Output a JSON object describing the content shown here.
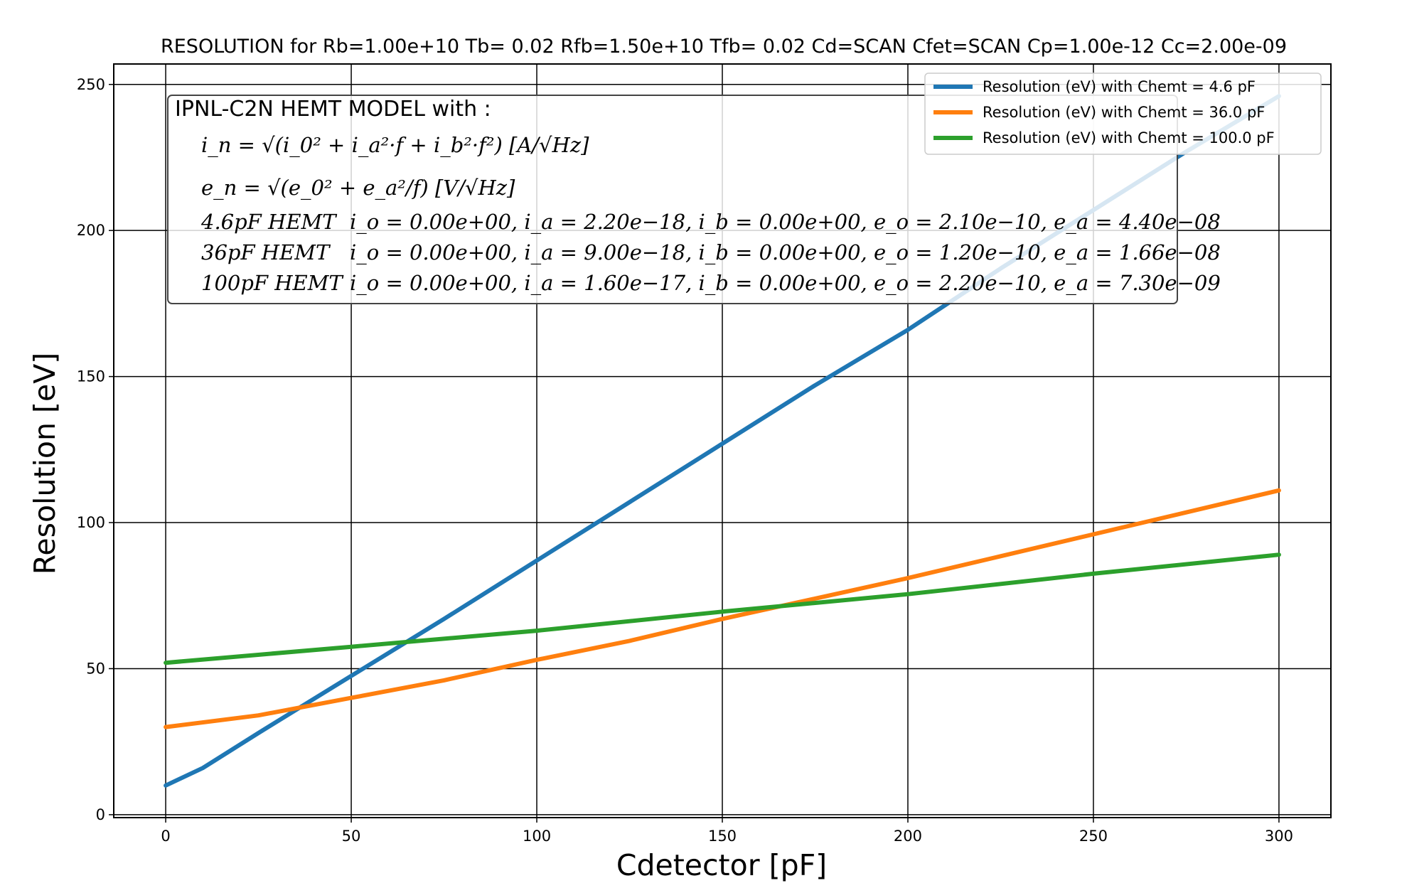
{
  "chart_data": {
    "type": "line",
    "title": "RESOLUTION for Rb=1.00e+10 Tb= 0.02 Rfb=1.50e+10 Tfb= 0.02 Cd=SCAN Cfet=SCAN Cp=1.00e-12 Cc=2.00e-09",
    "xlabel": "Cdetector [pF]",
    "ylabel": "Resolution [eV]",
    "xlim": [
      -14,
      314
    ],
    "ylim": [
      -1,
      257
    ],
    "xticks": [
      0,
      50,
      100,
      150,
      200,
      250,
      300
    ],
    "yticks": [
      0,
      50,
      100,
      150,
      200,
      250
    ],
    "grid": true,
    "legend_position": "top-right",
    "series": [
      {
        "name": "Resolution (eV) with Chemt = 4.6 pF",
        "color": "#1f77b4",
        "x": [
          0,
          10,
          25,
          50,
          75,
          100,
          125,
          150,
          175,
          200,
          225,
          250,
          275,
          300
        ],
        "y": [
          10,
          16,
          28,
          47.5,
          67,
          87,
          107,
          127,
          147,
          166,
          187,
          207,
          227,
          246
        ]
      },
      {
        "name": "Resolution (eV) with Chemt = 36.0 pF",
        "color": "#ff7f0e",
        "x": [
          0,
          25,
          50,
          75,
          100,
          125,
          150,
          175,
          200,
          225,
          250,
          275,
          300
        ],
        "y": [
          30,
          34,
          40,
          46,
          53,
          59.5,
          67,
          74,
          81,
          88.5,
          96,
          103.5,
          111
        ]
      },
      {
        "name": "Resolution (eV) with Chemt = 100.0 pF",
        "color": "#2ca02c",
        "x": [
          0,
          50,
          100,
          150,
          200,
          250,
          300
        ],
        "y": [
          52,
          57.5,
          63,
          69.5,
          75.5,
          82.5,
          89
        ]
      }
    ],
    "annotation": {
      "heading": "IPNL-C2N HEMT MODEL with :",
      "formula_in": "i_n = √(i_0² + i_a²·f + i_b²·f²)   [A/√Hz]",
      "formula_en": "e_n = √(e_0² + e_a²/f)   [V/√Hz]",
      "rows": [
        {
          "label": "4.6pF HEMT",
          "params": "i_o = 0.00e+00, i_a = 2.20e−18, i_b = 0.00e+00, e_o = 2.10e−10, e_a = 4.40e−08"
        },
        {
          "label": "36pF HEMT",
          "params": "i_o = 0.00e+00, i_a = 9.00e−18, i_b = 0.00e+00, e_o = 1.20e−10, e_a = 1.66e−08"
        },
        {
          "label": "100pF HEMT",
          "params": "i_o = 0.00e+00, i_a = 1.60e−17, i_b = 0.00e+00, e_o = 2.20e−10, e_a = 7.30e−09"
        }
      ]
    }
  }
}
